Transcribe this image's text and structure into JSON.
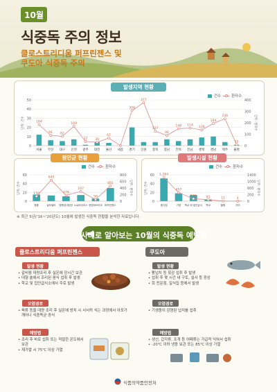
{
  "header": {
    "month": "10월",
    "title": "식중독 주의 정보",
    "subtitle_line1": "클로스트리디움 퍼프린젠스 및",
    "subtitle_line2": "쿠도아 식중독 주의"
  },
  "chart_data": [
    {
      "type": "bar",
      "title": "발생지역 현황",
      "legend": [
        "건수",
        "환자수"
      ],
      "y_left_unit": "단위: 건수",
      "y_right_unit": "단위: 환자수",
      "ylim_left": [
        0,
        50
      ],
      "ylim_right": [
        0,
        400
      ],
      "y_left_ticks": [
        "50",
        "40",
        "30",
        "20",
        "10",
        "0"
      ],
      "y_right_ticks": [
        "400",
        "300",
        "200",
        "100",
        "0"
      ],
      "categories": [
        "서울",
        "부산",
        "대구",
        "인천",
        "광주",
        "대전",
        "울산",
        "세종",
        "경기",
        "강원",
        "충북",
        "충남",
        "전북",
        "전남",
        "경북",
        "경남",
        "제주",
        "불명"
      ],
      "series": [
        {
          "name": "건수",
          "values": [
            12,
            6,
            5,
            7,
            1,
            4,
            3,
            0,
            20,
            4,
            4,
            7,
            5,
            7,
            9,
            10,
            4,
            1
          ]
        },
        {
          "name": "환자수",
          "values": [
            184,
            91,
            82,
            169,
            37,
            30,
            67,
            0,
            306,
            377,
            127,
            90,
            148,
            154,
            138,
            194,
            236,
            10
          ]
        }
      ],
      "line_labels": [
        "184",
        "91",
        "82",
        "169",
        "37",
        "30",
        "67",
        "",
        "306",
        "377",
        "127",
        "90",
        "148",
        "154",
        "138",
        "194",
        "236",
        "10"
      ]
    },
    {
      "type": "bar",
      "title": "원인균 현황",
      "legend": [
        "건수",
        "환자수"
      ],
      "y_left_unit": "단위: 건수",
      "y_right_unit": "단위: 환자수",
      "ylim_left": [
        0,
        60
      ],
      "ylim_right": [
        0,
        800
      ],
      "y_left_ticks": [
        "60",
        "40",
        "20",
        "0"
      ],
      "y_right_ticks": [
        "800",
        "600",
        "400",
        "200",
        "0"
      ],
      "categories": [
        "원충",
        "살모넬라",
        "병원성대장균",
        "노로바이러스",
        "장염비브리오",
        "퍼프린젠스"
      ],
      "series": [
        {
          "name": "건수",
          "values": [
            15,
            13,
            11,
            14,
            6,
            30
          ]
        },
        {
          "name": "환자수",
          "values": [
            150,
            640,
            178,
            297,
            50,
            465
          ]
        }
      ],
      "line_labels": [
        "150",
        "640",
        "178",
        "297",
        "50",
        "465"
      ]
    },
    {
      "type": "bar",
      "title": "발생시설 현황",
      "legend": [
        "건수",
        "환자수"
      ],
      "y_left_unit": "단위: 건수",
      "y_right_unit": "단위: 환자수",
      "ylim_left": [
        0,
        60
      ],
      "ylim_right": [
        0,
        1400
      ],
      "y_left_ticks": [
        "60",
        "40",
        "20",
        "0"
      ],
      "y_right_ticks": [
        "1400",
        "1000",
        "600",
        "200",
        "0"
      ],
      "categories": [
        "음식점",
        "가정",
        "학교 외 집단급식",
        "학교",
        "불명",
        "기타"
      ],
      "series": [
        {
          "name": "건수",
          "values": [
            52,
            18,
            14,
            4,
            1,
            1
          ]
        },
        {
          "name": "환자수",
          "values": [
            1264,
            457,
            131,
            81,
            11,
            4
          ]
        }
      ],
      "line_labels": [
        "1,264",
        "457",
        "131",
        "81",
        "11",
        "4"
      ]
    }
  ],
  "note": "※ 최근 5년('16~'20년도) 10월에 발생한 식중독 현황을 분석한 자료입니다.",
  "prevention": {
    "title": "사례로 알아보는 10월의 식중독 예방법",
    "left": {
      "heading": "클로스트리디움 퍼프린젠스",
      "case_label": "발생 현황",
      "case_items": [
        "갈비찜 대량조리 후 실온에 장시간 보관",
        "대형 솥에서 조리된 음식 섭취 후 발생",
        "학교 및 집단급식소에서 주로 발생"
      ],
      "route_label": "오염경로",
      "route_items": [
        "육류 등을 대량 조리 후 실온에 방치 시 서서히 식는 과정에서 아포가 깨어나 식중독균 증식"
      ],
      "prevent_label": "예방법",
      "prevent_items": [
        "조리 후 바로 섭취 또는 적절한 온도에서 보관",
        "재가열 시 75℃ 이상 가열"
      ]
    },
    "right": {
      "heading": "쿠도아",
      "case_label": "발생 현황",
      "case_items": [
        "활넙치 등 횟감 섭취 후 발생",
        "섭취 후 몇 시간 내 구토, 설사 등 증상",
        "회 전문점, 일식집 등에서 발생"
      ],
      "route_label": "오염경로",
      "route_items": [
        "기생충이 감염된 넙치를 섭취"
      ],
      "prevent_label": "예방법",
      "prevent_items": [
        "생선, 갑각류, 조개 등 어패류는 가급적 익혀서 섭취",
        "-20℃ 이하 냉동 보관 또는 85℃ 이상 가열"
      ]
    }
  },
  "footer": {
    "agency": "식품의약품안전처"
  },
  "colors": {
    "bar": "#3aaab0",
    "line": "#e08a8a",
    "tag_region": "#5ab0b4",
    "tag_cause": "#e8a13a",
    "tag_facility": "#e07a7a",
    "prev_left": "#c9564b",
    "prev_right": "#6c6a62",
    "green": "#5a7f26"
  }
}
